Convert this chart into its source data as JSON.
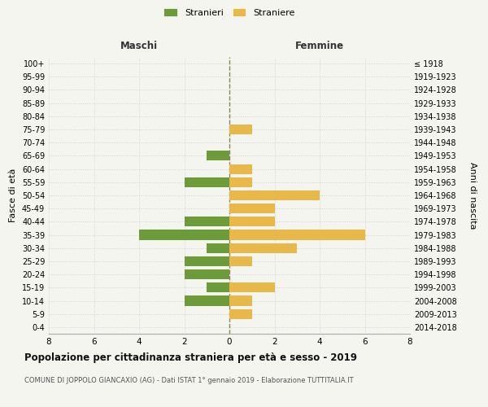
{
  "age_groups": [
    "0-4",
    "5-9",
    "10-14",
    "15-19",
    "20-24",
    "25-29",
    "30-34",
    "35-39",
    "40-44",
    "45-49",
    "50-54",
    "55-59",
    "60-64",
    "65-69",
    "70-74",
    "75-79",
    "80-84",
    "85-89",
    "90-94",
    "95-99",
    "100+"
  ],
  "birth_years": [
    "2014-2018",
    "2009-2013",
    "2004-2008",
    "1999-2003",
    "1994-1998",
    "1989-1993",
    "1984-1988",
    "1979-1983",
    "1974-1978",
    "1969-1973",
    "1964-1968",
    "1959-1963",
    "1954-1958",
    "1949-1953",
    "1944-1948",
    "1939-1943",
    "1934-1938",
    "1929-1933",
    "1924-1928",
    "1919-1923",
    "≤ 1918"
  ],
  "maschi": [
    0,
    0,
    2,
    1,
    2,
    2,
    1,
    4,
    2,
    0,
    0,
    2,
    0,
    1,
    0,
    0,
    0,
    0,
    0,
    0,
    0
  ],
  "femmine": [
    0,
    1,
    1,
    2,
    0,
    1,
    3,
    6,
    2,
    2,
    4,
    1,
    1,
    0,
    0,
    1,
    0,
    0,
    0,
    0,
    0
  ],
  "maschi_color": "#6d9b3a",
  "femmine_color": "#e8b84b",
  "background_color": "#f5f5f0",
  "grid_color": "#cccccc",
  "center_line_color": "#888855",
  "title_main": "Popolazione per cittadinanza straniera per età e sesso - 2019",
  "title_sub": "COMUNE DI JOPPOLO GIANCAXIO (AG) - Dati ISTAT 1° gennaio 2019 - Elaborazione TUTTITALIA.IT",
  "label_maschi": "Maschi",
  "label_femmine": "Femmine",
  "legend_stranieri": "Stranieri",
  "legend_straniere": "Straniere",
  "ylabel_left": "Fasce di età",
  "ylabel_right": "Anni di nascita",
  "xlim": 8,
  "bar_height": 0.75
}
